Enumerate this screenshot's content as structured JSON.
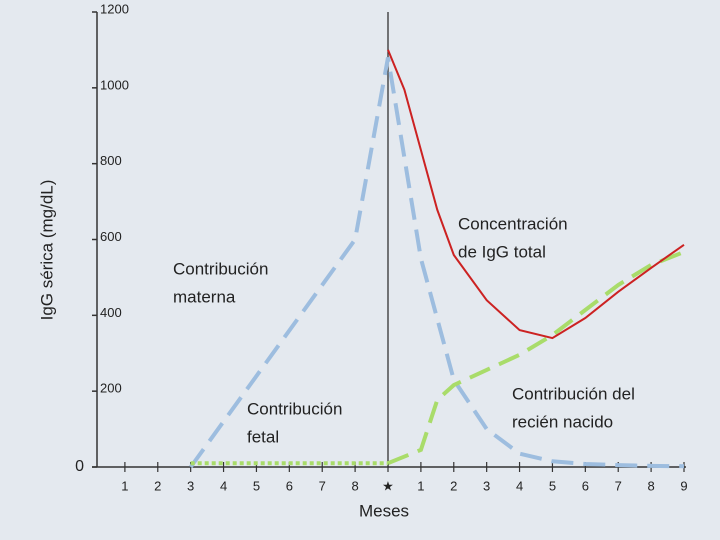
{
  "chart_data": {
    "type": "line",
    "y_label": "IgG sérica (mg/dL)",
    "x_label": "Meses",
    "xlim": [
      0,
      18
    ],
    "ylim": [
      0,
      1200
    ],
    "xticks": [
      1,
      2,
      3,
      4,
      5,
      6,
      7,
      8,
      {
        "value": 9,
        "label": "★"
      },
      {
        "value": 10,
        "label": "1"
      },
      {
        "value": 11,
        "label": "2"
      },
      {
        "value": 12,
        "label": "3"
      },
      {
        "value": 13,
        "label": "4"
      },
      {
        "value": 14,
        "label": "5"
      },
      {
        "value": 15,
        "label": "6"
      },
      {
        "value": 16,
        "label": "7"
      },
      {
        "value": 17,
        "label": "8"
      },
      {
        "value": 18,
        "label": "9"
      }
    ],
    "yticks": [
      0,
      200,
      400,
      600,
      800,
      1000,
      1200
    ],
    "series": [
      {
        "color": "#9dbddf",
        "dash": "dashed",
        "x": [
          3,
          8,
          9,
          10,
          11,
          12,
          13,
          14,
          15,
          16,
          17,
          18
        ],
        "values": [
          0,
          600,
          1080,
          550,
          230,
          100,
          35,
          15,
          8,
          5,
          3,
          2
        ]
      },
      {
        "color": "#a9dc6a",
        "dash": "dotted",
        "x": [
          3,
          9
        ],
        "values": [
          10,
          10
        ]
      },
      {
        "color": "#a9dc6a",
        "dash": "dashed",
        "x": [
          9,
          10,
          10.5,
          11,
          12,
          13,
          14,
          15,
          16,
          17,
          18
        ],
        "values": [
          10,
          45,
          177,
          216,
          256,
          296,
          348,
          414,
          480,
          533,
          567
        ]
      },
      {
        "color": "#cc2222",
        "dash": "solid",
        "x": [
          9,
          9.5,
          10,
          10.5,
          11,
          12,
          13,
          14,
          15,
          16,
          17,
          18
        ],
        "values": [
          1100,
          995,
          836,
          678,
          559,
          440,
          361,
          340,
          393,
          462,
          525,
          586
        ]
      }
    ],
    "annotations": [
      {
        "lines": [
          "Contribución",
          "materna"
        ]
      },
      {
        "lines": [
          "Contribución",
          "fetal"
        ]
      },
      {
        "lines": [
          "Concentración",
          "de IgG total"
        ]
      },
      {
        "lines": [
          "Contribución del",
          "recién nacido"
        ]
      }
    ]
  }
}
